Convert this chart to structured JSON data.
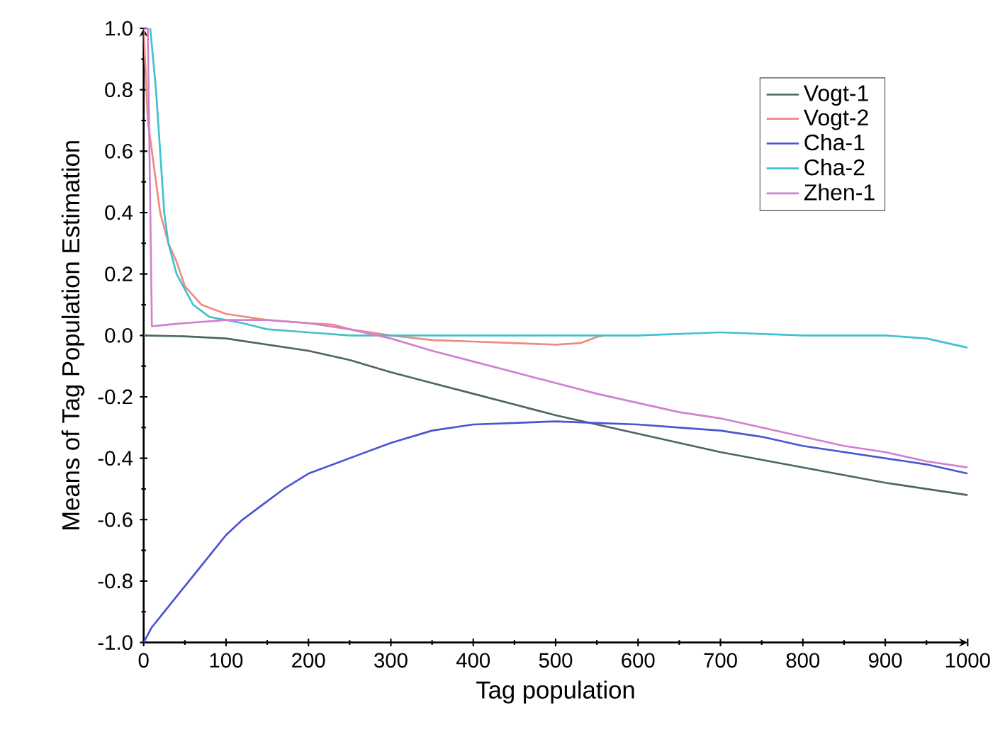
{
  "chart_data": {
    "type": "line",
    "xlabel": "Tag population",
    "ylabel": "Means of Tag Population Estimation",
    "xlim": [
      0,
      1000
    ],
    "ylim": [
      -1.0,
      1.0
    ],
    "xticks": [
      0,
      100,
      200,
      300,
      400,
      500,
      600,
      700,
      800,
      900,
      1000
    ],
    "yticks": [
      {
        "value": -1.0,
        "label": "-1.0"
      },
      {
        "value": -0.8,
        "label": "-0.8"
      },
      {
        "value": -0.6,
        "label": "-0.6"
      },
      {
        "value": -0.4,
        "label": "-0.4"
      },
      {
        "value": -0.2,
        "label": "-0.2"
      },
      {
        "value": 0.0,
        "label": "0.0"
      },
      {
        "value": 0.2,
        "label": "0.2"
      },
      {
        "value": 0.4,
        "label": "0.4"
      },
      {
        "value": 0.6,
        "label": "0.6"
      },
      {
        "value": 0.8,
        "label": "0.8"
      },
      {
        "value": 1.0,
        "label": "1.0"
      }
    ],
    "grid": false,
    "legend": "top right",
    "marker": "none",
    "line_style": "solid",
    "series": [
      {
        "name": "Vogt-1",
        "color": "#4d6466",
        "x": [
          0,
          50,
          100,
          150,
          200,
          250,
          300,
          350,
          400,
          450,
          500,
          550,
          600,
          650,
          700,
          750,
          800,
          850,
          900,
          950,
          1000
        ],
        "values": [
          0.0,
          -0.003,
          -0.01,
          -0.03,
          -0.05,
          -0.08,
          -0.12,
          -0.155,
          -0.19,
          -0.225,
          -0.26,
          -0.29,
          -0.32,
          -0.35,
          -0.38,
          -0.405,
          -0.43,
          -0.455,
          -0.48,
          -0.5,
          -0.52
        ]
      },
      {
        "name": "Vogt-2",
        "color": "#f08a80",
        "x": [
          0,
          5,
          20,
          30,
          40,
          50,
          70,
          100,
          150,
          200,
          230,
          250,
          300,
          350,
          400,
          450,
          500,
          530,
          550,
          560
        ],
        "values": [
          1.0,
          0.7,
          0.4,
          0.3,
          0.24,
          0.16,
          0.1,
          0.07,
          0.05,
          0.04,
          0.035,
          0.02,
          0.0,
          -0.015,
          -0.02,
          -0.025,
          -0.03,
          -0.025,
          -0.005,
          0.0
        ]
      },
      {
        "name": "Cha-1",
        "color": "#4a55d0",
        "x": [
          0,
          10,
          25,
          40,
          55,
          70,
          85,
          100,
          120,
          145,
          170,
          200,
          250,
          300,
          350,
          400,
          450,
          500,
          550,
          600,
          650,
          700,
          750,
          800,
          850,
          900,
          950,
          1000
        ],
        "values": [
          -1.0,
          -0.95,
          -0.9,
          -0.85,
          -0.8,
          -0.75,
          -0.7,
          -0.65,
          -0.6,
          -0.55,
          -0.5,
          -0.45,
          -0.4,
          -0.35,
          -0.31,
          -0.29,
          -0.285,
          -0.28,
          -0.285,
          -0.29,
          -0.3,
          -0.31,
          -0.33,
          -0.36,
          -0.38,
          -0.4,
          -0.42,
          -0.45
        ]
      },
      {
        "name": "Cha-2",
        "color": "#40c0d0",
        "x": [
          0,
          8,
          15,
          20,
          25,
          30,
          35,
          40,
          50,
          60,
          80,
          100,
          120,
          150,
          200,
          250,
          300,
          400,
          500,
          600,
          700,
          800,
          900,
          950,
          1000
        ],
        "values": [
          1.0,
          1.0,
          0.8,
          0.6,
          0.4,
          0.3,
          0.25,
          0.2,
          0.15,
          0.1,
          0.06,
          0.05,
          0.04,
          0.02,
          0.01,
          0.0,
          0.0,
          0.0,
          0.0,
          0.0,
          0.01,
          0.0,
          0.0,
          -0.01,
          -0.04
        ]
      },
      {
        "name": "Zhen-1",
        "color": "#d080d0",
        "x": [
          0,
          5,
          10,
          50,
          100,
          150,
          200,
          250,
          300,
          350,
          400,
          450,
          500,
          550,
          600,
          650,
          700,
          750,
          800,
          850,
          900,
          950,
          1000
        ],
        "values": [
          1.0,
          1.0,
          0.03,
          0.04,
          0.05,
          0.05,
          0.04,
          0.02,
          -0.01,
          -0.05,
          -0.085,
          -0.12,
          -0.155,
          -0.19,
          -0.22,
          -0.25,
          -0.27,
          -0.3,
          -0.33,
          -0.36,
          -0.38,
          -0.41,
          -0.43
        ]
      }
    ]
  }
}
